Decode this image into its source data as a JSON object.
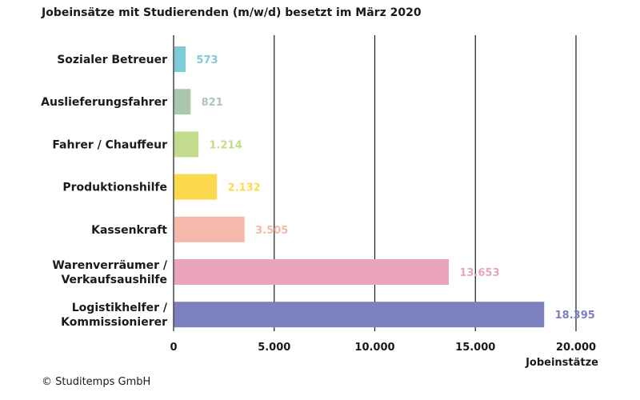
{
  "chart_data": {
    "type": "bar",
    "orientation": "horizontal",
    "title": "Jobeinsätze mit Studierenden (m/w/d) besetzt im März 2020",
    "xlabel": "Jobeinstätze",
    "ylabel": "",
    "xlim": [
      0,
      20000
    ],
    "ticks": [
      0,
      5000,
      10000,
      15000,
      20000
    ],
    "tick_labels": [
      "0",
      "5.000",
      "10.000",
      "15.000",
      "20.000"
    ],
    "grid": true,
    "categories": [
      [
        "Sozialer Betreuer"
      ],
      [
        "Auslieferungsfahrer"
      ],
      [
        "Fahrer / Chauffeur"
      ],
      [
        "Produktionshilfe"
      ],
      [
        "Kassenkraft"
      ],
      [
        "Warenverräumer /",
        "Verkaufsaushilfe"
      ],
      [
        "Logistikhelfer /",
        "Kommissionierer"
      ]
    ],
    "values": [
      573,
      821,
      1214,
      2132,
      3505,
      13653,
      18395
    ],
    "value_labels": [
      "573",
      "821",
      "1.214",
      "2.132",
      "3.505",
      "13.653",
      "18.395"
    ],
    "colors": [
      "#7ecbda",
      "#adc6ae",
      "#c3db8c",
      "#fdd94f",
      "#f5b8ab",
      "#eaa4bd",
      "#7c80bd"
    ]
  },
  "footer": {
    "source": "© Studitemps GmbH"
  }
}
